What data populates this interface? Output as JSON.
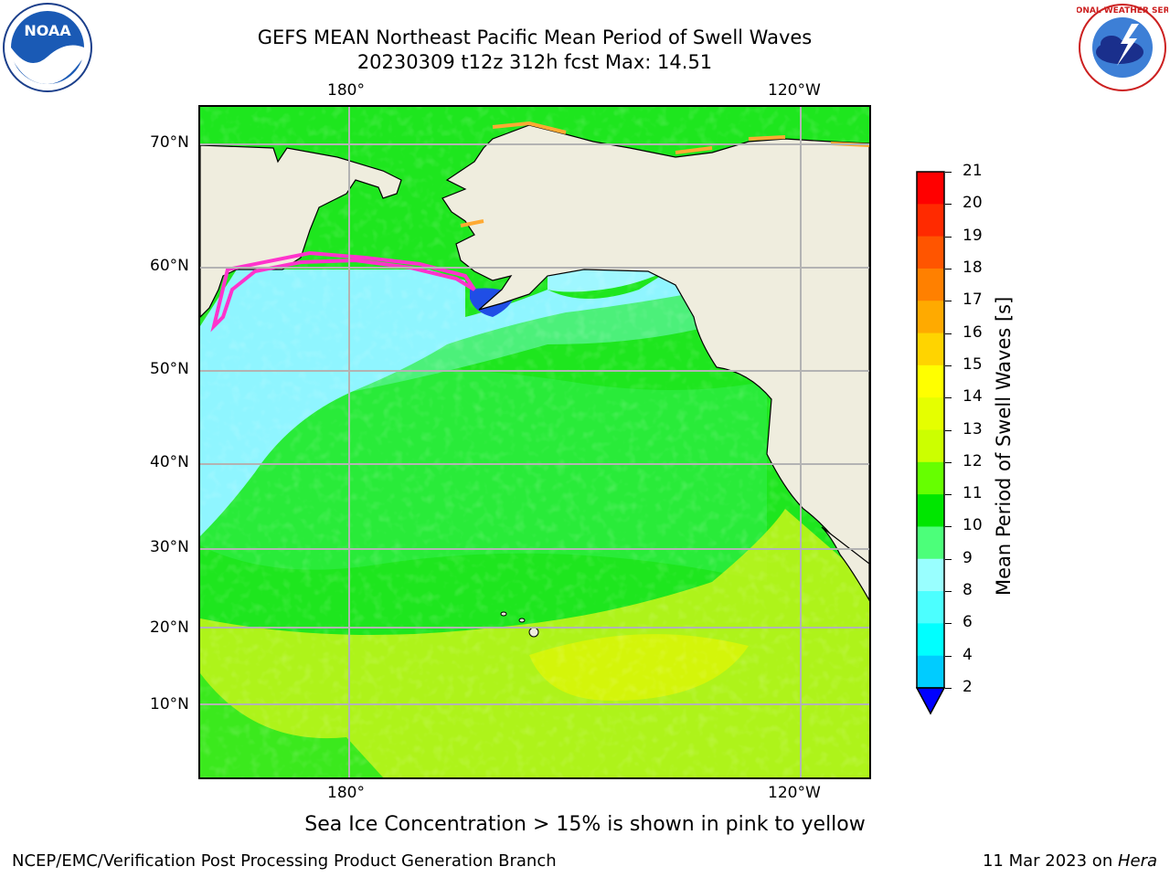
{
  "header": {
    "title_line1": "GEFS MEAN Northeast Pacific Mean Period of Swell Waves",
    "title_line2": "20230309 t12z 312h fcst   Max: 14.51",
    "noaa_logo_text": "NOAA",
    "nws_logo_text": "NATIONAL WEATHER SERVICE"
  },
  "map": {
    "lon_labels": [
      "180°",
      "120°W"
    ],
    "lat_labels": [
      "70°N",
      "60°N",
      "50°N",
      "40°N",
      "30°N",
      "20°N",
      "10°N"
    ]
  },
  "colorbar": {
    "title": "Mean Period of Swell Waves [s]",
    "ticks": [
      "21",
      "20",
      "19",
      "18",
      "17",
      "16",
      "15",
      "14",
      "13",
      "12",
      "11",
      "10",
      "9",
      "8",
      "6",
      "4",
      "2"
    ],
    "colors": [
      "#ff0000",
      "#ff2a00",
      "#ff5500",
      "#ff8000",
      "#ffaa00",
      "#ffd400",
      "#ffff00",
      "#e5ff00",
      "#ccff00",
      "#66ff00",
      "#00e600",
      "#4cff7a",
      "#99ffff",
      "#4cffff",
      "#00ffff",
      "#00ccff",
      "#0066ff",
      "#0000ff"
    ]
  },
  "colors": {
    "land": "#efedde",
    "ocean_green": "#1ee61e",
    "ocean_lightgreen": "#4cf07a",
    "ocean_cyan": "#8ff5ff",
    "ocean_yellow": "#c8f51a",
    "ice_pink": "#ff33cc",
    "ice_orange": "#ffaa33",
    "grid": "#b3b3b3"
  },
  "note": "Sea Ice Concentration > 15% is shown in pink to yellow",
  "footer": {
    "left": "NCEP/EMC/Verification Post Processing Product Generation Branch",
    "right_prefix": "11 Mar 2023 on ",
    "right_host": "Hera"
  }
}
